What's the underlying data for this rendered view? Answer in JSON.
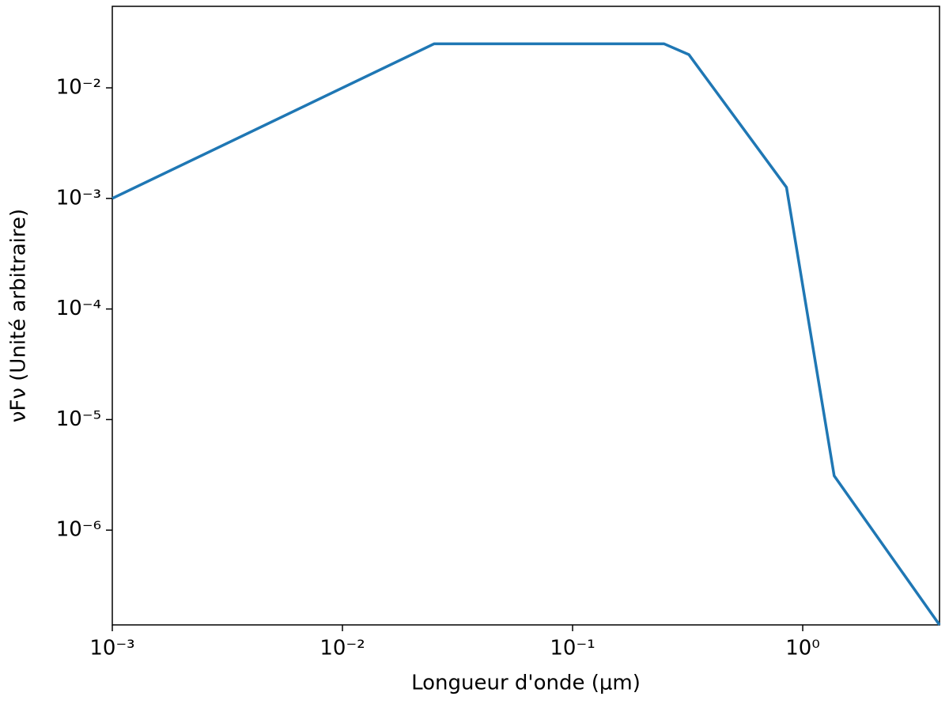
{
  "chart_data": {
    "type": "line",
    "x_label": "Longueur d'onde (μm)",
    "y_label": "νFν (Unité arbitraire)",
    "x": [
      0.001,
      0.025,
      0.25,
      0.32,
      0.85,
      1.37,
      3.93
    ],
    "values": [
      0.001,
      0.025,
      0.025,
      0.02,
      0.00126,
      3.1e-06,
      1.39e-07
    ],
    "color": "#1f77b4",
    "xscale": "log",
    "yscale": "log",
    "xlim": [
      0.001,
      3.93
    ],
    "ylim": [
      1.39e-07,
      0.0546
    ],
    "xticks": [
      {
        "value": 0.001,
        "label": "10⁻³"
      },
      {
        "value": 0.01,
        "label": "10⁻²"
      },
      {
        "value": 0.1,
        "label": "10⁻¹"
      },
      {
        "value": 1,
        "label": "10⁰"
      }
    ],
    "yticks": [
      {
        "value": 1e-06,
        "label": "10⁻⁶"
      },
      {
        "value": 1e-05,
        "label": "10⁻⁵"
      },
      {
        "value": 0.0001,
        "label": "10⁻⁴"
      },
      {
        "value": 0.001,
        "label": "10⁻³"
      },
      {
        "value": 0.01,
        "label": "10⁻²"
      }
    ],
    "grid": false
  }
}
